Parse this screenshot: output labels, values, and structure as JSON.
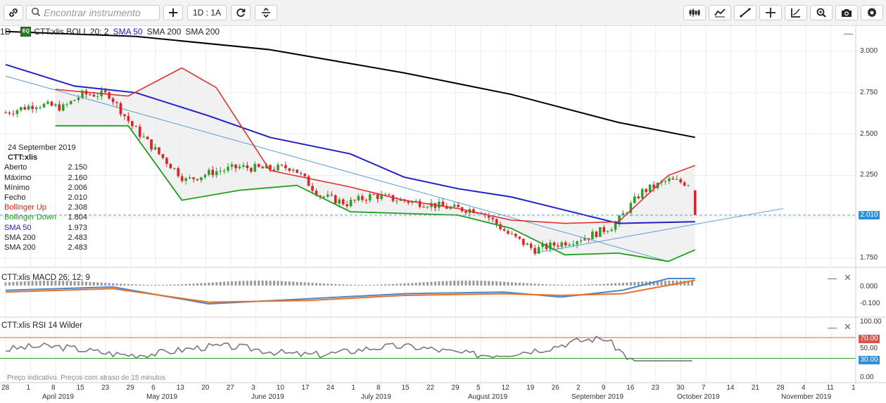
{
  "toolbar": {
    "search_placeholder": "Encontrar instrumento",
    "timeframe_label": "1D : 1A"
  },
  "legend": {
    "interval": "1D",
    "badge": "EQ",
    "text": "CTT:xlis  BOLL 20; 2",
    "sma50": "SMA 50",
    "sma200a": "SMA 200",
    "sma200b": "SMA 200"
  },
  "infobox": {
    "date": "24 September 2019",
    "symbol": "CTT:xlis",
    "rows": [
      {
        "label": "Aberto",
        "value": "2.150",
        "color": "#222222"
      },
      {
        "label": "Máximo",
        "value": "2.160",
        "color": "#222222"
      },
      {
        "label": "Mínimo",
        "value": "2.006",
        "color": "#222222"
      },
      {
        "label": "Fecho",
        "value": "2.010",
        "color": "#222222"
      },
      {
        "label": "Bollinger Up",
        "value": "2.308",
        "color": "#d9251d"
      },
      {
        "label": "Bollinger Down",
        "value": "1.804",
        "color": "#1f9e1f"
      },
      {
        "label": "SMA 50",
        "value": "1.973",
        "color": "#1a1acc"
      },
      {
        "label": "SMA 200",
        "value": "2.483",
        "color": "#222222"
      },
      {
        "label": "SMA 200",
        "value": "2.483",
        "color": "#222222"
      }
    ]
  },
  "price_axis": {
    "labels": [
      "3.000",
      "2.750",
      "2.500",
      "2.250",
      "2.010",
      "1.750"
    ],
    "current": "2.010"
  },
  "macd_pane": {
    "legend": "CTT:xlis  MACD 26; 12; 9",
    "axis": [
      "0.000",
      "-0.100"
    ]
  },
  "rsi_pane": {
    "legend": "CTT:xlis  RSI 14 Wilder",
    "axis": [
      "100.00",
      "70.00",
      "50.00",
      "30.00",
      "0.00"
    ]
  },
  "delayed_notice": "Preço indicativo. Preços com atraso de 15 minutos",
  "x_axis": {
    "days": [
      "28",
      "1",
      "8",
      "15",
      "23",
      "29",
      "6",
      "13",
      "20",
      "27",
      "3",
      "10",
      "17",
      "24",
      "1",
      "8",
      "15",
      "22",
      "29",
      "5",
      "12",
      "19",
      "26",
      "2",
      "9",
      "16",
      "23",
      "30",
      "7",
      "14",
      "21",
      "28",
      "4",
      "11",
      "1"
    ],
    "months": [
      "April 2019",
      "May 2019",
      "June 2019",
      "July 2019",
      "August 2019",
      "September 2019",
      "October 2019",
      "November 2019"
    ]
  },
  "colors": {
    "bollinger_up": "#e03030",
    "bollinger_down": "#1f9e1f",
    "sma50": "#2020c8",
    "sma200": "#000000",
    "trend": "#5b9bd5",
    "up_candle": "#2ca02c",
    "down_candle": "#d62728",
    "rsi_line": "#777777",
    "macd_line": "#4a86c8",
    "signal_line": "#e8702a"
  },
  "chart_data": [
    {
      "type": "candlestick",
      "title": "CTT:xlis",
      "x_range": [
        "2019-03-28",
        "2019-11-01"
      ],
      "ylim": [
        1.7,
        3.13
      ],
      "close_series": [
        [
          "2019-03-28",
          2.63
        ],
        [
          "2019-04-05",
          2.68
        ],
        [
          "2019-04-12",
          2.66
        ],
        [
          "2019-04-17",
          2.74
        ],
        [
          "2019-04-24",
          2.74
        ],
        [
          "2019-04-30",
          2.55
        ],
        [
          "2019-05-07",
          2.38
        ],
        [
          "2019-05-14",
          2.22
        ],
        [
          "2019-05-21",
          2.27
        ],
        [
          "2019-05-28",
          2.3
        ],
        [
          "2019-06-04",
          2.29
        ],
        [
          "2019-06-11",
          2.3
        ],
        [
          "2019-06-18",
          2.13
        ],
        [
          "2019-06-25",
          2.08
        ],
        [
          "2019-07-02",
          2.13
        ],
        [
          "2019-07-09",
          2.1
        ],
        [
          "2019-07-16",
          2.08
        ],
        [
          "2019-07-23",
          2.05
        ],
        [
          "2019-07-30",
          2.04
        ],
        [
          "2019-08-06",
          1.9
        ],
        [
          "2019-08-13",
          1.8
        ],
        [
          "2019-08-20",
          1.84
        ],
        [
          "2019-08-27",
          1.88
        ],
        [
          "2019-09-03",
          1.95
        ],
        [
          "2019-09-10",
          2.15
        ],
        [
          "2019-09-17",
          2.22
        ],
        [
          "2019-09-23",
          2.2
        ],
        [
          "2019-09-24",
          2.01
        ]
      ],
      "bollinger_up": [
        [
          "2019-04-10",
          2.77
        ],
        [
          "2019-04-29",
          2.73
        ],
        [
          "2019-05-13",
          2.9
        ],
        [
          "2019-05-22",
          2.78
        ],
        [
          "2019-06-05",
          2.28
        ],
        [
          "2019-06-26",
          2.18
        ],
        [
          "2019-07-10",
          2.1
        ],
        [
          "2019-07-24",
          2.05
        ],
        [
          "2019-08-07",
          1.98
        ],
        [
          "2019-08-21",
          1.96
        ],
        [
          "2019-09-04",
          1.97
        ],
        [
          "2019-09-17",
          2.25
        ],
        [
          "2019-09-24",
          2.31
        ]
      ],
      "bollinger_down": [
        [
          "2019-04-10",
          2.55
        ],
        [
          "2019-04-29",
          2.55
        ],
        [
          "2019-05-13",
          2.1
        ],
        [
          "2019-05-28",
          2.16
        ],
        [
          "2019-06-12",
          2.19
        ],
        [
          "2019-06-26",
          2.03
        ],
        [
          "2019-07-10",
          2.02
        ],
        [
          "2019-07-24",
          2.01
        ],
        [
          "2019-08-07",
          1.93
        ],
        [
          "2019-08-21",
          1.77
        ],
        [
          "2019-09-04",
          1.78
        ],
        [
          "2019-09-17",
          1.73
        ],
        [
          "2019-09-24",
          1.8
        ]
      ],
      "sma50": [
        [
          "2019-03-28",
          2.92
        ],
        [
          "2019-04-15",
          2.79
        ],
        [
          "2019-05-01",
          2.75
        ],
        [
          "2019-05-20",
          2.61
        ],
        [
          "2019-06-05",
          2.48
        ],
        [
          "2019-06-26",
          2.38
        ],
        [
          "2019-07-10",
          2.24
        ],
        [
          "2019-07-24",
          2.17
        ],
        [
          "2019-08-07",
          2.12
        ],
        [
          "2019-08-21",
          2.04
        ],
        [
          "2019-09-04",
          1.96
        ],
        [
          "2019-09-24",
          1.97
        ]
      ],
      "sma200": [
        [
          "2019-03-28",
          3.12
        ],
        [
          "2019-05-01",
          3.09
        ],
        [
          "2019-06-05",
          3.01
        ],
        [
          "2019-07-10",
          2.87
        ],
        [
          "2019-08-07",
          2.74
        ],
        [
          "2019-09-04",
          2.57
        ],
        [
          "2019-09-24",
          2.48
        ]
      ],
      "trendlines": [
        [
          [
            "2019-03-28",
            2.85
          ],
          [
            "2019-09-17",
            1.73
          ]
        ],
        [
          [
            "2019-08-13",
            1.78
          ],
          [
            "2019-10-17",
            2.05
          ]
        ]
      ],
      "last_price": 2.01
    },
    {
      "type": "line",
      "title": "MACD 26; 12; 9",
      "ylim": [
        -0.15,
        0.08
      ],
      "x_range": [
        "2019-03-28",
        "2019-09-24"
      ]
    },
    {
      "type": "line",
      "title": "RSI 14 Wilder",
      "ylim": [
        0,
        100
      ],
      "levels": [
        70,
        30
      ],
      "x_range": [
        "2019-03-28",
        "2019-09-24"
      ]
    }
  ]
}
